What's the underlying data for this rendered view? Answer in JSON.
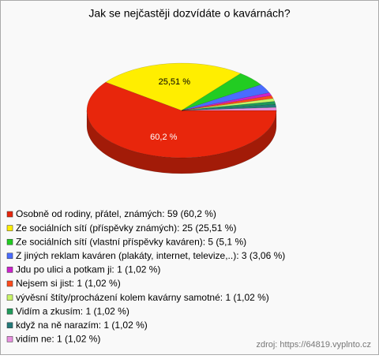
{
  "chart_data": {
    "type": "pie3d",
    "title": "Jak se nejčastěji dozvídáte o kavárnách?",
    "categories": [
      "Osobně od rodiny, přátel, známých: 59 (60,2 %)",
      "Ze sociálních sítí (příspěvky známých): 25 (25,51 %)",
      "Ze sociálních sítí (vlastní příspěvky kaváren): 5 (5,1 %)",
      "Z jiných reklam kaváren (plakáty, internet, televize,..): 3 (3,06 %)",
      "Jdu po ulici a potkam ji: 1 (1,02 %)",
      "Nejsem si jist: 1 (1,02 %)",
      "vývěsní štíty/procházení kolem kavárny samotné: 1 (1,02 %)",
      "Vidím a zkusím: 1 (1,02 %)",
      "když na ně narazím: 1 (1,02 %)",
      "vidím ne: 1 (1,02 %)"
    ],
    "values": [
      60.2,
      25.51,
      5.1,
      3.06,
      1.02,
      1.02,
      1.02,
      1.02,
      1.02,
      1.02
    ],
    "value_labels": [
      "60,2 %",
      "25,51 %",
      null,
      null,
      null,
      null,
      null,
      null,
      null,
      null
    ],
    "colors": [
      "#e8260c",
      "#ffee00",
      "#22cc22",
      "#4a6cff",
      "#cc22cc",
      "#ff4a1a",
      "#c8f566",
      "#1f9a5a",
      "#247a7a",
      "#e890e0"
    ],
    "source": "zdroj: https://64819.vyplnto.cz"
  }
}
